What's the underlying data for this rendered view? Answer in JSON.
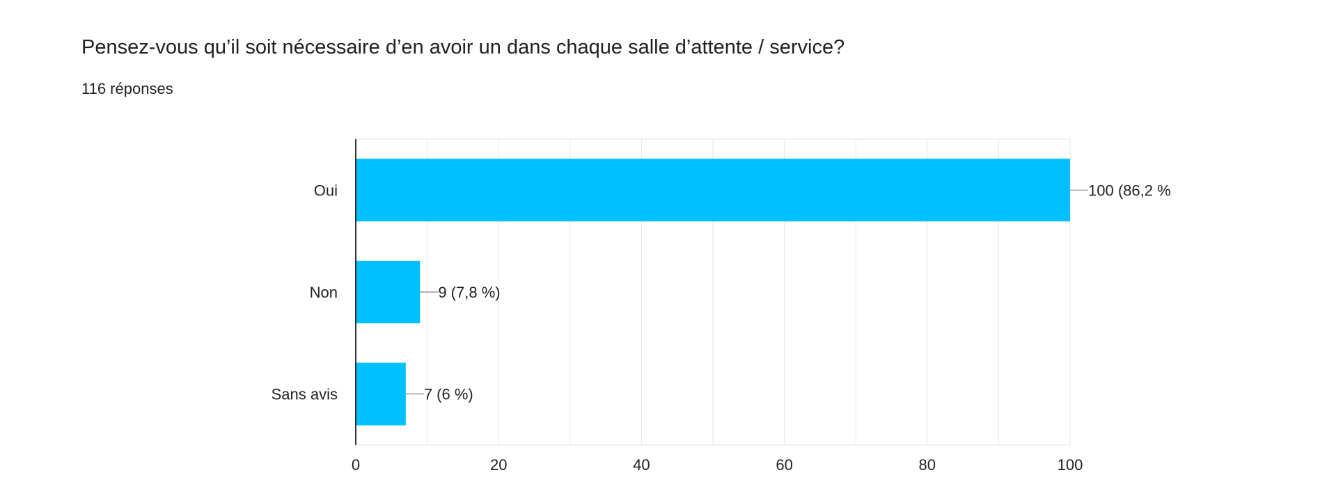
{
  "question": {
    "title": "Pensez-vous qu’il soit nécessaire d’en avoir un dans chaque salle d’attente / service?",
    "responses": "116 réponses"
  },
  "colors": {
    "bar": "#00c0ff",
    "axis": "#333333",
    "grid": "#e6e6e6",
    "text": "#202124"
  },
  "chart_data": {
    "type": "bar",
    "orientation": "horizontal",
    "categories": [
      "Oui",
      "Non",
      "Sans avis"
    ],
    "values": [
      100,
      9,
      7
    ],
    "data_labels": [
      "100 (86,2 %",
      "9 (7,8 %)",
      "7 (6 %)"
    ],
    "xlim": [
      0,
      100
    ],
    "xticks": [
      0,
      20,
      40,
      60,
      80,
      100
    ],
    "xtick_labels": [
      "0",
      "20",
      "40",
      "60",
      "80",
      "100"
    ],
    "grid": true,
    "legend": "none"
  }
}
